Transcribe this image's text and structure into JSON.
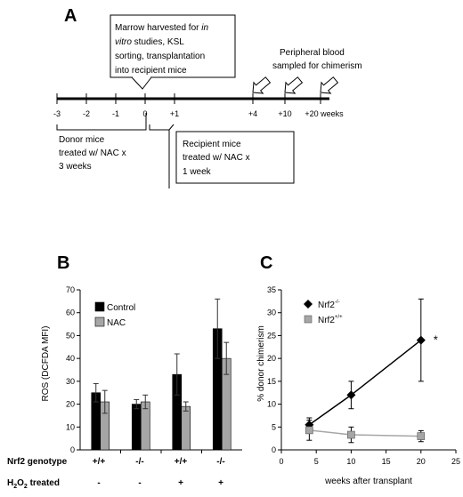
{
  "panelA": {
    "letter": "A",
    "marrow_box": {
      "line1_pre": "Marrow harvested for ",
      "line1_italic": "in",
      "line2_italic": "vitro",
      "line2_post": " studies, KSL",
      "line3": "sorting, transplantation",
      "line4": "into recipient mice"
    },
    "blood_label": {
      "line1": "Peripheral blood",
      "line2": "sampled for chimerism"
    },
    "ticks": [
      "-3",
      "-2",
      "-1",
      "0",
      "+1",
      "+4",
      "+10",
      "+20 weeks"
    ],
    "donor_label": {
      "line1": "Donor mice",
      "line2": "treated w/ NAC x",
      "line3": "3 weeks"
    },
    "recipient_box": {
      "line1": "Recipient mice",
      "line2": "treated w/ NAC x",
      "line3": "1 week"
    }
  },
  "panelB": {
    "letter": "B",
    "row1_label": "Nrf2 genotype",
    "row2_label_pre": "H",
    "row2_label_sub": "2",
    "row2_label_mid": "O",
    "row2_label_sub2": "2",
    "row2_label_post": " treated",
    "genotypes": [
      "+/+",
      "-/-",
      "+/+",
      "-/-"
    ],
    "h2o2": [
      "-",
      "-",
      "+",
      "+"
    ]
  },
  "panelC": {
    "letter": "C",
    "significance": "*"
  },
  "chart_data": [
    {
      "type": "bar",
      "ylabel": "ROS (DCFDA MFI)",
      "ylim": [
        0,
        70
      ],
      "yticks": [
        "0",
        "10",
        "20",
        "30",
        "40",
        "50",
        "60",
        "70"
      ],
      "categories": [
        "+/+ -",
        "-/- -",
        "+/+ +",
        "-/- +"
      ],
      "series": [
        {
          "name": "Control",
          "color": "#000000",
          "values": [
            25,
            20,
            33,
            53
          ],
          "errors": [
            4,
            2,
            9,
            13
          ]
        },
        {
          "name": "NAC",
          "color": "#a6a6a6",
          "values": [
            21,
            21,
            19,
            40
          ],
          "errors": [
            5,
            3,
            2,
            7
          ]
        }
      ],
      "legend": "top-left"
    },
    {
      "type": "line",
      "xlabel": "weeks after transplant",
      "ylabel": "% donor chimerism",
      "xlim": [
        0,
        25
      ],
      "ylim": [
        0,
        35
      ],
      "xticks": [
        "0",
        "5",
        "10",
        "15",
        "20",
        "25"
      ],
      "yticks": [
        "0",
        "5",
        "10",
        "15",
        "20",
        "25",
        "30",
        "35"
      ],
      "series": [
        {
          "name_pre": "Nrf2",
          "name_sup": "-/-",
          "marker": "diamond",
          "color": "#000000",
          "x": [
            4,
            10,
            20
          ],
          "y": [
            5.5,
            12,
            24
          ],
          "errors": [
            1.5,
            3,
            9
          ]
        },
        {
          "name_pre": "Nrf2",
          "name_sup": "+/+",
          "marker": "square",
          "color": "#a6a6a6",
          "x": [
            4,
            10,
            20
          ],
          "y": [
            4.3,
            3.3,
            3.0
          ],
          "errors": [
            2.2,
            1.7,
            1.2
          ]
        }
      ],
      "legend": "top-left"
    }
  ]
}
